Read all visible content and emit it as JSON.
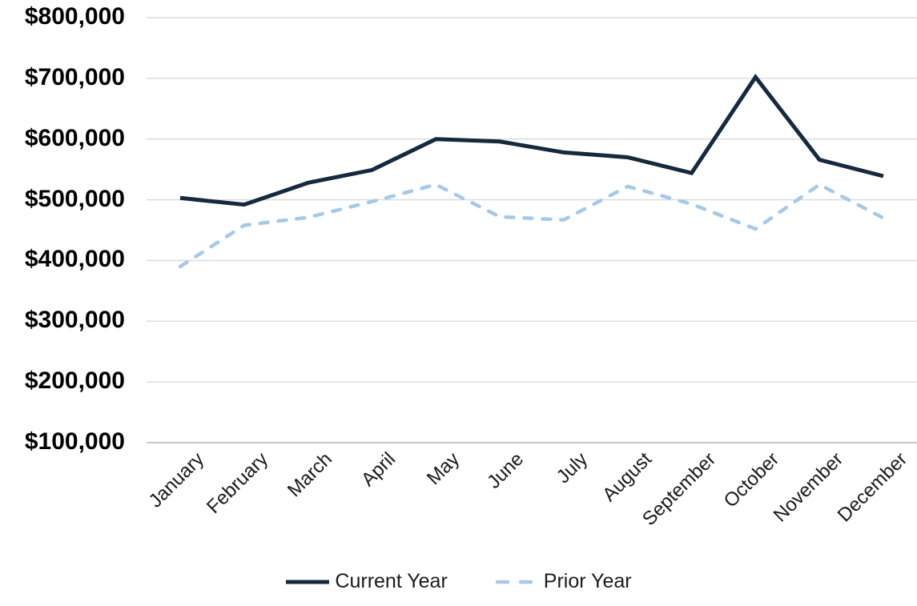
{
  "chart_data": {
    "type": "line",
    "title": "",
    "xlabel": "",
    "ylabel": "",
    "categories": [
      "January",
      "February",
      "March",
      "April",
      "May",
      "June",
      "July",
      "August",
      "September",
      "October",
      "November",
      "December"
    ],
    "series": [
      {
        "name": "Current Year",
        "style": "solid",
        "color": "#16293F",
        "values": [
          503000,
          492000,
          528000,
          549000,
          600000,
          596000,
          578000,
          570000,
          544000,
          702000,
          566000,
          539000
        ]
      },
      {
        "name": "Prior Year",
        "style": "dashed",
        "color": "#A6C9E8",
        "values": [
          390000,
          458000,
          471000,
          497000,
          525000,
          472000,
          467000,
          522000,
          493000,
          452000,
          525000,
          470000
        ]
      }
    ],
    "y_axis": {
      "min": 100000,
      "max": 800000,
      "step": 100000,
      "tick_labels_desc": [
        "$800,000",
        "$700,000",
        "$600,000",
        "$500,000",
        "$400,000",
        "$300,000",
        "$200,000",
        "$100,000"
      ]
    },
    "grid": "horizontal",
    "gridline_color": "#D9D9D9",
    "axis_line_color": "#C9C9C9",
    "x_label_rotation_deg": -45,
    "legend_position": "bottom"
  }
}
